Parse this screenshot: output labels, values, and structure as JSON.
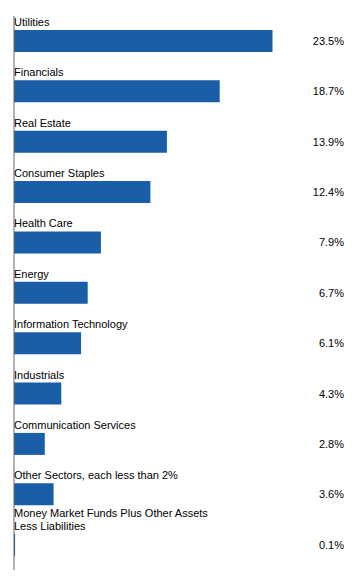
{
  "chart_data": {
    "type": "bar",
    "orientation": "horizontal",
    "categories": [
      "Utilities",
      "Financials",
      "Real Estate",
      "Consumer Staples",
      "Health Care",
      "Energy",
      "Information Technology",
      "Industrials",
      "Communication Services",
      "Other Sectors, each less than 2%",
      "Money Market Funds Plus Other Assets\nLess Liabilities"
    ],
    "values": [
      23.5,
      18.7,
      13.9,
      12.4,
      7.9,
      6.7,
      6.1,
      4.3,
      2.8,
      3.6,
      0.1
    ],
    "value_labels": [
      "23.5%",
      "18.7%",
      "13.9%",
      "12.4%",
      "7.9%",
      "6.7%",
      "6.1%",
      "4.3%",
      "2.8%",
      "3.6%",
      "0.1%"
    ],
    "data_labels": true,
    "color": "#1A5EA8",
    "xlim": [
      0,
      30
    ],
    "tick_labels": false,
    "grid": false
  }
}
